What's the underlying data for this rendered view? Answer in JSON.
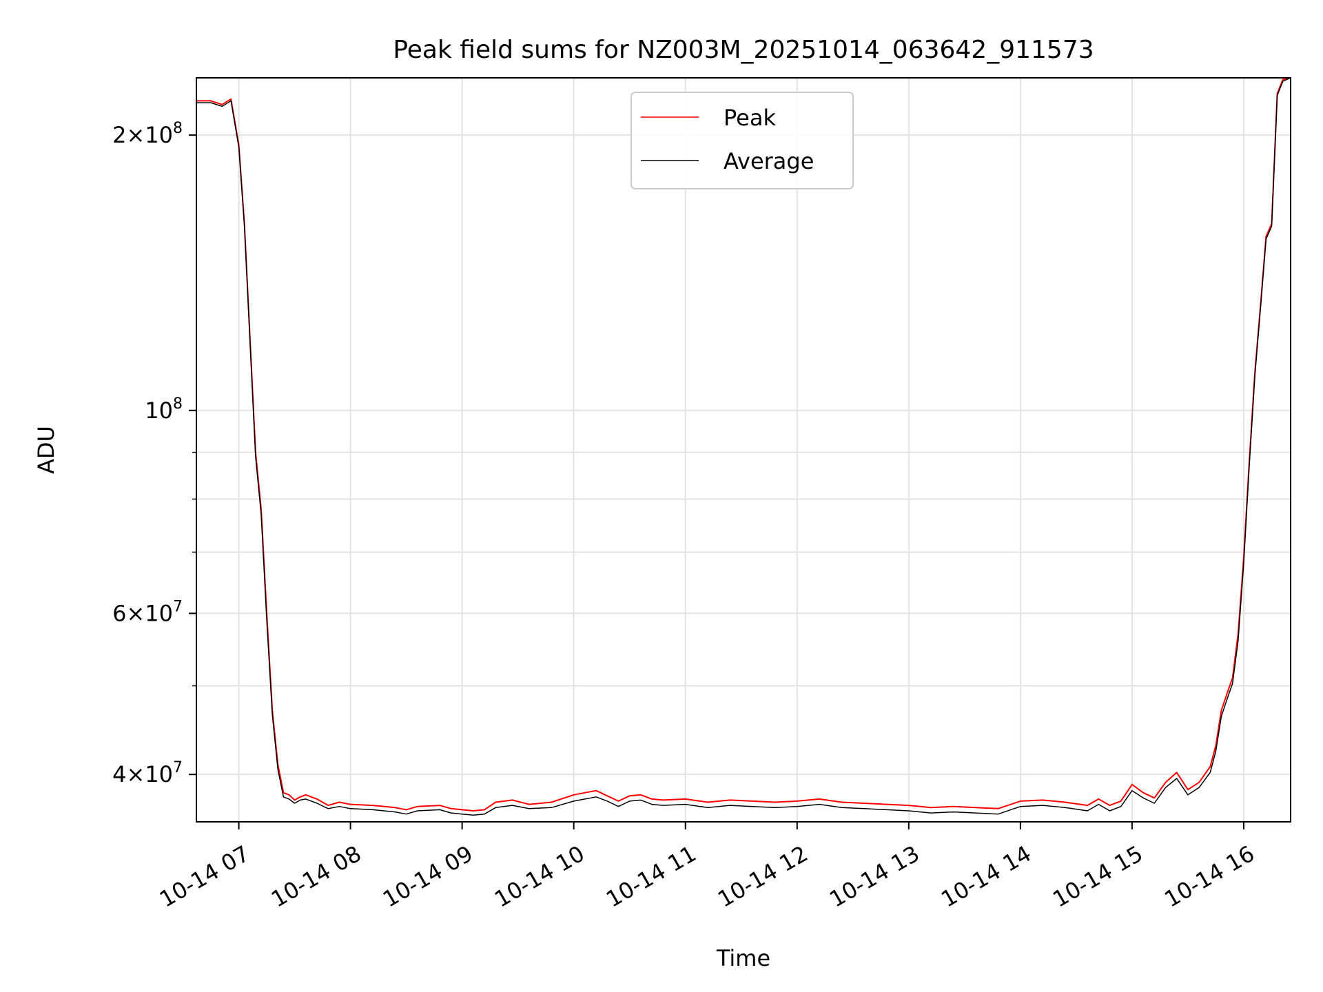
{
  "chart_data": {
    "type": "line",
    "title": "Peak field sums for NZ003M_20251014_063642_911573",
    "xlabel": "Time",
    "ylabel": "ADU",
    "yscale": "log",
    "xlim": [
      6.62,
      16.42
    ],
    "ylim": [
      35500000,
      231000000
    ],
    "grid": true,
    "legend_position": "top-center",
    "x_ticks": [
      {
        "value": 7,
        "label": "10-14 07"
      },
      {
        "value": 8,
        "label": "10-14 08"
      },
      {
        "value": 9,
        "label": "10-14 09"
      },
      {
        "value": 10,
        "label": "10-14 10"
      },
      {
        "value": 11,
        "label": "10-14 11"
      },
      {
        "value": 12,
        "label": "10-14 12"
      },
      {
        "value": 13,
        "label": "10-14 13"
      },
      {
        "value": 14,
        "label": "10-14 14"
      },
      {
        "value": 15,
        "label": "10-14 15"
      },
      {
        "value": 16,
        "label": "10-14 16"
      }
    ],
    "y_major_ticks": [
      {
        "value": 40000000,
        "mantissa": "4",
        "base": "10",
        "exp": "7"
      },
      {
        "value": 60000000,
        "mantissa": "6",
        "base": "10",
        "exp": "7"
      },
      {
        "value": 100000000,
        "mantissa": "",
        "base": "10",
        "exp": "8"
      },
      {
        "value": 200000000,
        "mantissa": "2",
        "base": "10",
        "exp": "8"
      }
    ],
    "y_minor_ticks": [
      50000000,
      70000000,
      80000000,
      90000000
    ],
    "series": [
      {
        "name": "Peak",
        "color": "#ff0000",
        "x": [
          6.62,
          6.75,
          6.85,
          6.93,
          7.0,
          7.05,
          7.1,
          7.15,
          7.2,
          7.25,
          7.3,
          7.35,
          7.4,
          7.45,
          7.5,
          7.55,
          7.6,
          7.7,
          7.8,
          7.9,
          8.0,
          8.2,
          8.4,
          8.5,
          8.6,
          8.8,
          8.9,
          9.0,
          9.1,
          9.2,
          9.3,
          9.45,
          9.6,
          9.8,
          10.0,
          10.1,
          10.2,
          10.3,
          10.4,
          10.5,
          10.6,
          10.7,
          10.8,
          11.0,
          11.2,
          11.4,
          11.6,
          11.8,
          12.0,
          12.2,
          12.4,
          12.6,
          12.8,
          13.0,
          13.2,
          13.4,
          13.6,
          13.8,
          14.0,
          14.2,
          14.4,
          14.6,
          14.7,
          14.8,
          14.9,
          15.0,
          15.1,
          15.2,
          15.3,
          15.4,
          15.5,
          15.6,
          15.7,
          15.75,
          15.8,
          15.85,
          15.9,
          15.95,
          16.0,
          16.05,
          16.1,
          16.15,
          16.2,
          16.25,
          16.3,
          16.35,
          16.42
        ],
        "y": [
          218000000,
          218000000,
          216000000,
          219000000,
          195000000,
          160000000,
          120000000,
          90000000,
          78000000,
          60000000,
          47000000,
          41000000,
          38200000,
          38000000,
          37500000,
          37800000,
          38000000,
          37600000,
          37000000,
          37300000,
          37100000,
          37000000,
          36800000,
          36600000,
          36900000,
          37000000,
          36700000,
          36600000,
          36500000,
          36600000,
          37300000,
          37500000,
          37100000,
          37300000,
          38000000,
          38200000,
          38400000,
          37900000,
          37400000,
          37900000,
          38000000,
          37600000,
          37500000,
          37600000,
          37300000,
          37500000,
          37400000,
          37300000,
          37400000,
          37600000,
          37300000,
          37200000,
          37100000,
          37000000,
          36800000,
          36900000,
          36800000,
          36700000,
          37400000,
          37500000,
          37300000,
          37000000,
          37600000,
          37000000,
          37400000,
          39000000,
          38200000,
          37700000,
          39200000,
          40200000,
          38500000,
          39200000,
          40800000,
          43000000,
          47000000,
          49000000,
          51000000,
          57000000,
          69000000,
          88000000,
          110000000,
          130000000,
          155000000,
          160000000,
          222000000,
          230000000,
          231000000
        ]
      },
      {
        "name": "Average",
        "color": "#000000",
        "x": [
          6.62,
          6.75,
          6.85,
          6.93,
          7.0,
          7.05,
          7.1,
          7.15,
          7.2,
          7.25,
          7.3,
          7.35,
          7.4,
          7.45,
          7.5,
          7.55,
          7.6,
          7.7,
          7.8,
          7.9,
          8.0,
          8.2,
          8.4,
          8.5,
          8.6,
          8.8,
          8.9,
          9.0,
          9.1,
          9.2,
          9.3,
          9.45,
          9.6,
          9.8,
          10.0,
          10.1,
          10.2,
          10.3,
          10.4,
          10.5,
          10.6,
          10.7,
          10.8,
          11.0,
          11.2,
          11.4,
          11.6,
          11.8,
          12.0,
          12.2,
          12.4,
          12.6,
          12.8,
          13.0,
          13.2,
          13.4,
          13.6,
          13.8,
          14.0,
          14.2,
          14.4,
          14.6,
          14.7,
          14.8,
          14.9,
          15.0,
          15.1,
          15.2,
          15.3,
          15.4,
          15.5,
          15.6,
          15.7,
          15.75,
          15.8,
          15.85,
          15.9,
          15.95,
          16.0,
          16.05,
          16.1,
          16.15,
          16.2,
          16.25,
          16.3,
          16.35,
          16.42
        ],
        "y": [
          217000000,
          217000000,
          215000000,
          218000000,
          194000000,
          159000000,
          119000000,
          89000000,
          77000000,
          59000000,
          46500000,
          40500000,
          37800000,
          37600000,
          37200000,
          37500000,
          37600000,
          37200000,
          36700000,
          36900000,
          36700000,
          36600000,
          36400000,
          36200000,
          36500000,
          36600000,
          36300000,
          36200000,
          36100000,
          36200000,
          36800000,
          37000000,
          36700000,
          36800000,
          37400000,
          37600000,
          37800000,
          37400000,
          36900000,
          37400000,
          37500000,
          37100000,
          37000000,
          37100000,
          36800000,
          37000000,
          36900000,
          36800000,
          36900000,
          37100000,
          36800000,
          36700000,
          36600000,
          36500000,
          36300000,
          36400000,
          36300000,
          36200000,
          36900000,
          37000000,
          36800000,
          36500000,
          37100000,
          36500000,
          36900000,
          38400000,
          37700000,
          37200000,
          38700000,
          39600000,
          38000000,
          38700000,
          40200000,
          42400000,
          46300000,
          48300000,
          50300000,
          56000000,
          68000000,
          87000000,
          109000000,
          129000000,
          154000000,
          159000000,
          221000000,
          229000000,
          231000000
        ]
      }
    ]
  }
}
